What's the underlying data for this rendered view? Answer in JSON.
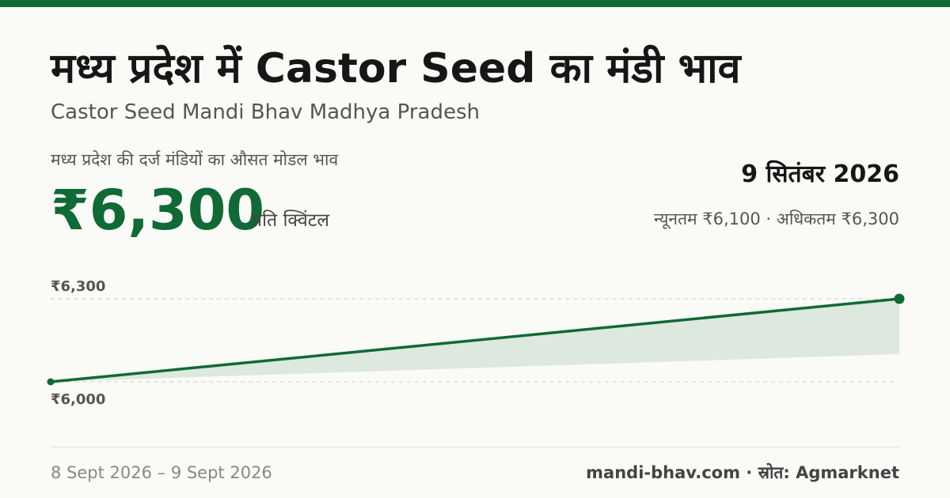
{
  "header": {
    "title": "मध्य प्रदेश में Castor Seed का मंडी भाव",
    "subtitle": "Castor Seed Mandi Bhav Madhya Pradesh"
  },
  "summary": {
    "avg_label": "मध्य प्रदेश की दर्ज मंडियों का औसत मोडल भाव",
    "price": "₹6,300",
    "unit": "प्रति क्विंटल",
    "date": "9 सितंबर 2026",
    "range": "न्यूनतम ₹6,100 · अधिकतम ₹6,300"
  },
  "chart_data": {
    "type": "area",
    "x": [
      "8 Sept 2026",
      "9 Sept 2026"
    ],
    "series": [
      {
        "values": [
          6000,
          6300
        ]
      },
      {
        "values": [
          6000,
          6100
        ]
      }
    ],
    "gridlines": [
      6300,
      6000
    ],
    "gridline_labels": [
      "₹6,300",
      "₹6,000"
    ],
    "ylim": [
      6000,
      6300
    ],
    "colors": {
      "line": "#0f6a35",
      "band": "#dde8df",
      "grid": "#cccccc"
    }
  },
  "footer": {
    "date_range": "8 Sept 2026 – 9 Sept 2026",
    "source": "mandi-bhav.com · स्रोत: Agmarknet"
  }
}
